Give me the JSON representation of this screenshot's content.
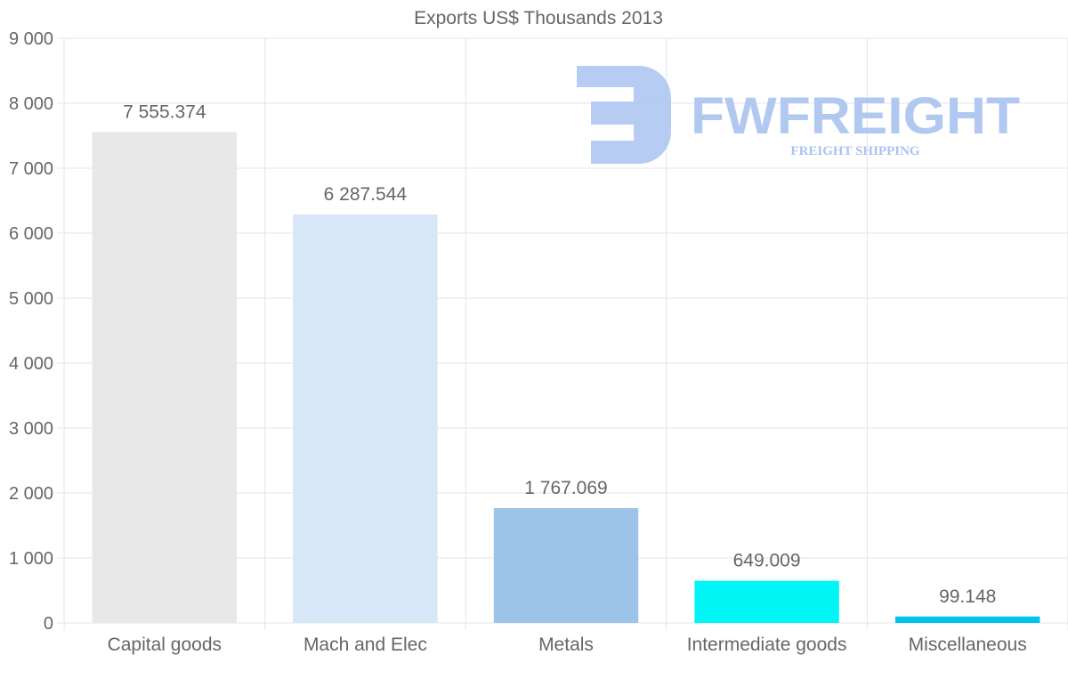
{
  "chart_data": {
    "type": "bar",
    "title": "Exports US$ Thousands 2013",
    "categories": [
      "Capital goods",
      "Mach and Elec",
      "Metals",
      "Intermediate goods",
      "Miscellaneous"
    ],
    "values": [
      7555.374,
      6287.544,
      1767.069,
      649.009,
      99.148
    ],
    "value_labels": [
      "7 555.374",
      "6 287.544",
      "1 767.069",
      "649.009",
      "99.148"
    ],
    "colors": [
      "#e8e8e8",
      "#d7e7f8",
      "#9dc4e8",
      "#00f5f5",
      "#00c3f0"
    ],
    "ylim": [
      0,
      9000
    ],
    "yticks": [
      0,
      1000,
      2000,
      3000,
      4000,
      5000,
      6000,
      7000,
      8000,
      9000
    ],
    "ytick_labels": [
      "0",
      "1 000",
      "2 000",
      "3 000",
      "4 000",
      "5 000",
      "6 000",
      "7 000",
      "8 000",
      "9 000"
    ],
    "xlabel": "",
    "ylabel": "",
    "grid": true,
    "legend": "none"
  },
  "watermark": {
    "brand": "FWFREIGHT",
    "tagline": "FREIGHT SHIPPING",
    "color": "#a9c3f0"
  }
}
